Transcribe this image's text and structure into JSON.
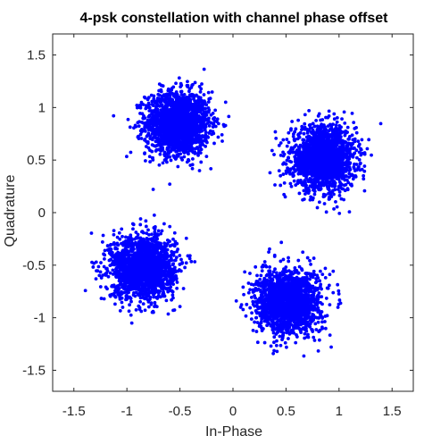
{
  "chart_data": {
    "type": "scatter",
    "title": "4-psk constellation with channel phase offset",
    "xlabel": "In-Phase",
    "ylabel": "Quadrature",
    "xlim": [
      -1.7,
      1.7
    ],
    "ylim": [
      -1.7,
      1.7
    ],
    "xticks": [
      -1.5,
      -1,
      -0.5,
      0,
      0.5,
      1,
      1.5
    ],
    "xtick_labels": [
      "-1.5",
      "-1",
      "-0.5",
      "0",
      "0.5",
      "1",
      "1.5"
    ],
    "yticks": [
      -1.5,
      -1,
      -0.5,
      0,
      0.5,
      1,
      1.5
    ],
    "ytick_labels": [
      "-1.5",
      "-1",
      "-0.5",
      "0",
      "0.5",
      "1",
      "1.5"
    ],
    "grid": false,
    "marker_color": "#0000ff",
    "clusters": [
      {
        "center": [
          -0.52,
          0.85
        ],
        "spread": 0.15
      },
      {
        "center": [
          0.85,
          0.52
        ],
        "spread": 0.15
      },
      {
        "center": [
          -0.85,
          -0.52
        ],
        "spread": 0.15
      },
      {
        "center": [
          0.52,
          -0.85
        ],
        "spread": 0.15
      }
    ]
  }
}
